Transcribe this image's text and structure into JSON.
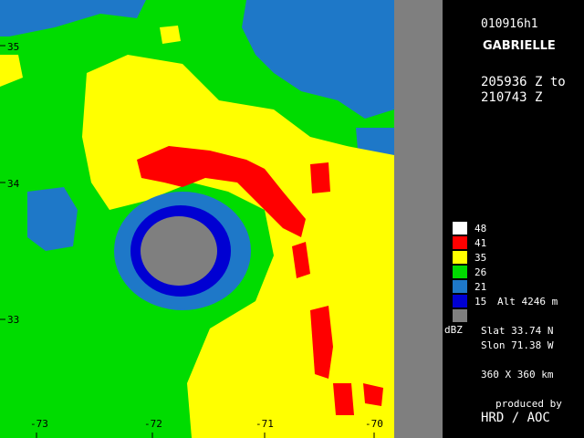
{
  "header": {
    "flight_id": "010916h1",
    "storm_name": "GABRIELLE",
    "time_from": "205936 Z to",
    "time_to": "210743 Z"
  },
  "legend": {
    "unit": "dBZ",
    "levels": [
      {
        "label": "48",
        "color": "#ffffff"
      },
      {
        "label": "41",
        "color": "#ff0000"
      },
      {
        "label": "35",
        "color": "#ffff00"
      },
      {
        "label": "26",
        "color": "#00dc00"
      },
      {
        "label": "21",
        "color": "#1e78c8"
      },
      {
        "label": "15",
        "color": "#0000d2"
      },
      {
        "label": "",
        "color": "#7f7f7f"
      }
    ],
    "altitude": "Alt  4246 m"
  },
  "position": {
    "slat": "Slat   33.74 N",
    "slon": "Slon   71.38 W"
  },
  "domain_size": "360 X 360 km",
  "credit": {
    "produced_by": "produced by",
    "org": "HRD / AOC"
  },
  "axes": {
    "latitudes": [
      "35",
      "34",
      "33"
    ],
    "longitudes": [
      "-73",
      "-72",
      "-71",
      "-70"
    ]
  }
}
